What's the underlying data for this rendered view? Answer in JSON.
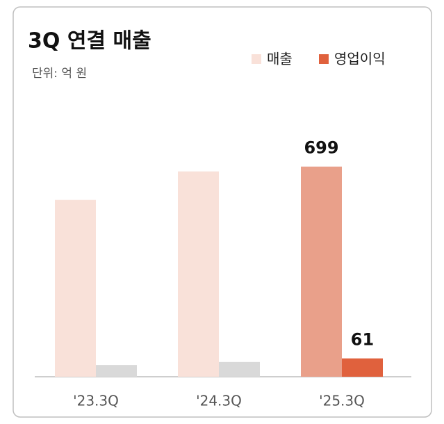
{
  "chart_data": {
    "type": "bar",
    "title": "3Q 연결 매출",
    "subtitle": "단위: 억 원",
    "categories": [
      "'23.3Q",
      "'24.3Q",
      "'25.3Q"
    ],
    "series": [
      {
        "name": "매출",
        "color": "#f9e1d9",
        "highlight_color": "#e9a08a",
        "values": [
          588,
          683,
          699
        ]
      },
      {
        "name": "영업이익",
        "color": "#d9d9d9",
        "highlight_color": "#e0613d",
        "values": [
          39,
          49,
          61
        ]
      }
    ],
    "highlight": "'25.3Q",
    "ylim": [
      0,
      800
    ]
  }
}
